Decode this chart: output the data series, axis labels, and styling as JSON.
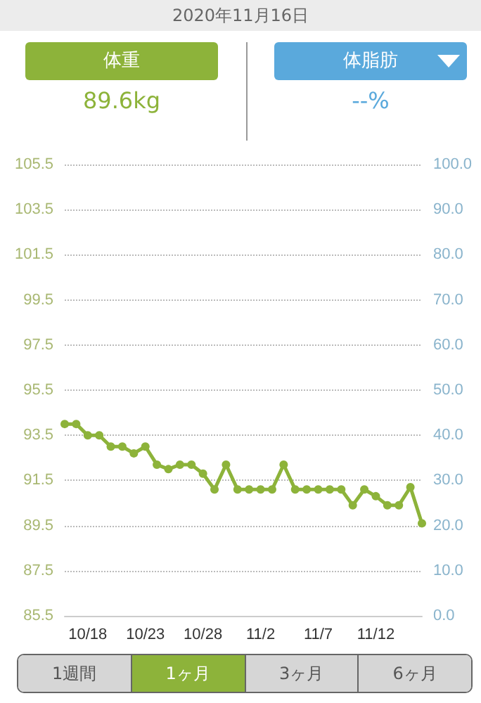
{
  "chart_data": {
    "type": "line",
    "title": "2020年11月16日",
    "annotations": [
      "体重",
      "89.6kg",
      "体脂肪",
      "--%",
      "1週間",
      "1ヶ月",
      "3ヶ月",
      "6ヶ月"
    ],
    "categories": [
      null,
      null,
      "10/18",
      null,
      null,
      null,
      null,
      "10/23",
      null,
      null,
      null,
      null,
      "10/28",
      null,
      null,
      null,
      null,
      "11/2",
      null,
      null,
      null,
      null,
      "11/7",
      null,
      null,
      null,
      null,
      "11/12",
      null,
      null,
      null,
      null
    ],
    "series": [
      {
        "color": "#8db33a",
        "values": [
          94.0,
          94.0,
          93.5,
          93.5,
          93.0,
          93.0,
          92.7,
          93.0,
          92.2,
          92.0,
          92.2,
          92.2,
          91.8,
          91.1,
          92.2,
          91.1,
          91.1,
          91.1,
          91.1,
          92.2,
          91.1,
          91.1,
          91.1,
          91.1,
          91.1,
          90.4,
          91.1,
          90.8,
          90.4,
          90.4,
          91.2,
          89.6
        ]
      }
    ],
    "ylim": [
      85.5,
      105.5
    ],
    "yticks": [
      85.5,
      87.5,
      89.5,
      91.5,
      93.5,
      95.5,
      97.5,
      99.5,
      101.5,
      103.5,
      105.5
    ],
    "y2lim": [
      0,
      100
    ],
    "y2ticks": [
      {
        "value": 0,
        "label": "0.0"
      },
      {
        "value": 10,
        "label": "10.0"
      },
      {
        "value": 20,
        "label": "20.0"
      },
      {
        "value": 30,
        "label": "30.0"
      },
      {
        "value": 40,
        "label": "40.0"
      },
      {
        "value": 50,
        "label": "50.0"
      },
      {
        "value": 60,
        "label": "60.0"
      },
      {
        "value": 70,
        "label": "70.0"
      },
      {
        "value": 80,
        "label": "80.0"
      },
      {
        "value": 90,
        "label": "90.0"
      },
      {
        "value": 100,
        "label": "100.0"
      }
    ],
    "grid": "y",
    "marker": "circle",
    "line_style": "solid"
  }
}
